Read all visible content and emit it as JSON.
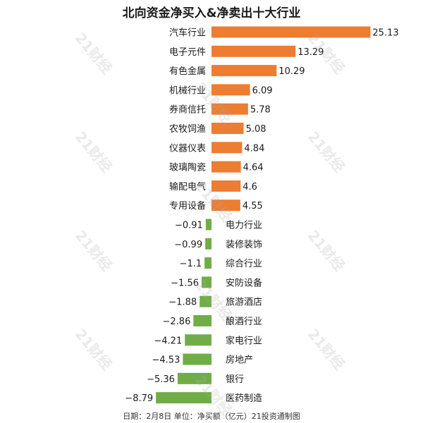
{
  "chart_data": {
    "type": "bar",
    "orientation": "horizontal",
    "title": "北向资金净买入&净卖出十大行业",
    "categories": [
      "汽车行业",
      "电子元件",
      "有色金属",
      "机械行业",
      "券商信托",
      "农牧饲渔",
      "仪器仪表",
      "玻璃陶瓷",
      "输配电气",
      "专用设备",
      "电力行业",
      "装修装饰",
      "综合行业",
      "安防设备",
      "旅游酒店",
      "酿酒行业",
      "家电行业",
      "房地产",
      "银行",
      "医药制造"
    ],
    "values": [
      25.13,
      13.29,
      10.29,
      6.09,
      5.78,
      5.08,
      4.84,
      4.64,
      4.6,
      4.55,
      -0.91,
      -0.99,
      -1.1,
      -1.56,
      -1.88,
      -2.86,
      -4.21,
      -4.53,
      -5.36,
      -8.79
    ],
    "value_labels": [
      "25.13",
      "13.29",
      "10.29",
      "6.09",
      "5.78",
      "5.08",
      "4.84",
      "4.64",
      "4.6",
      "4.55",
      "−0.91",
      "−0.99",
      "−1.1",
      "−1.56",
      "−1.88",
      "−2.86",
      "−4.21",
      "−4.53",
      "−5.36",
      "−8.79"
    ],
    "xlim": [
      -8.79,
      25.13
    ],
    "grid": false,
    "colors": {
      "positive": "#ED7D31",
      "negative": "#70AD47"
    },
    "footnote": "日期：2月8日 单位：净买额（亿元）21投资通制图",
    "watermark": "21财经"
  }
}
